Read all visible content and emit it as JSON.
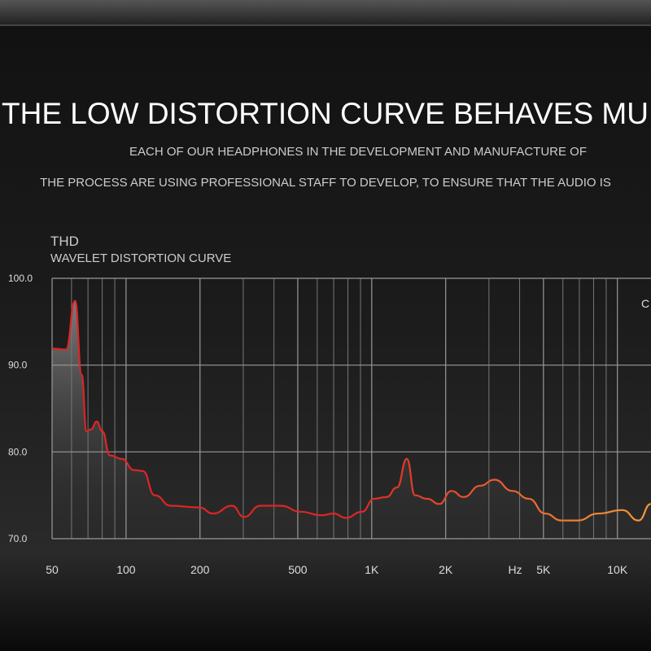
{
  "header": {
    "headline": "THE LOW DISTORTION CURVE BEHAVES MULT",
    "lines": [
      "EACH OF OUR HEADPHONES IN THE DEVELOPMENT AND MANUFACTURE OF",
      "THE PROCESS ARE USING PROFESSIONAL STAFF TO DEVELOP, TO ENSURE THAT THE AUDIO IS"
    ]
  },
  "chart_data": {
    "type": "line",
    "title": "THD",
    "subtitle": "WAVELET DISTORTION CURVE",
    "xlabel": "Hz",
    "annotation": "C",
    "log_x": true,
    "grid": true,
    "color": "#e02424",
    "color_end": "#f39a3a",
    "x": [
      50,
      57,
      62,
      66,
      69,
      72,
      76,
      80,
      86,
      96,
      108,
      117,
      131,
      152,
      199,
      226,
      270,
      302,
      352,
      426,
      515,
      624,
      700,
      784,
      912,
      1023,
      1148,
      1267,
      1390,
      1500,
      1680,
      1884,
      2113,
      2366,
      2760,
      3160,
      3740,
      4360,
      5080,
      5910,
      6890,
      8340,
      10470,
      12190,
      13680
    ],
    "values": [
      91.9,
      91.8,
      97.4,
      88.9,
      82.4,
      82.6,
      83.5,
      82.4,
      79.6,
      79.2,
      77.9,
      77.8,
      75.0,
      73.8,
      73.6,
      72.9,
      73.8,
      72.5,
      73.8,
      73.8,
      73.1,
      72.7,
      72.9,
      72.4,
      73.1,
      74.6,
      74.8,
      75.9,
      79.2,
      75.0,
      74.6,
      74.0,
      75.5,
      74.8,
      76.1,
      76.8,
      75.5,
      74.6,
      72.9,
      72.1,
      72.1,
      72.9,
      73.3,
      72.1,
      74.0
    ],
    "xlim": [
      50,
      13700
    ],
    "xticks": [
      50,
      100,
      200,
      500,
      {
        "value": 1000,
        "label": "1K"
      },
      {
        "value": 2000,
        "label": "2K"
      },
      {
        "value": 5000,
        "label": "5K"
      },
      {
        "value": 10000,
        "label": "10K"
      }
    ],
    "xgrid": [
      60,
      70,
      80,
      90,
      300,
      400,
      600,
      700,
      800,
      900,
      3000,
      4000,
      6000,
      7000,
      8000,
      9000
    ],
    "ylim": [
      70,
      100
    ],
    "yticks": [
      {
        "value": 100,
        "label": "100.0"
      },
      {
        "value": 90,
        "label": "90.0"
      },
      {
        "value": 80,
        "label": "80.0"
      },
      {
        "value": 70,
        "label": "70.0"
      }
    ]
  }
}
